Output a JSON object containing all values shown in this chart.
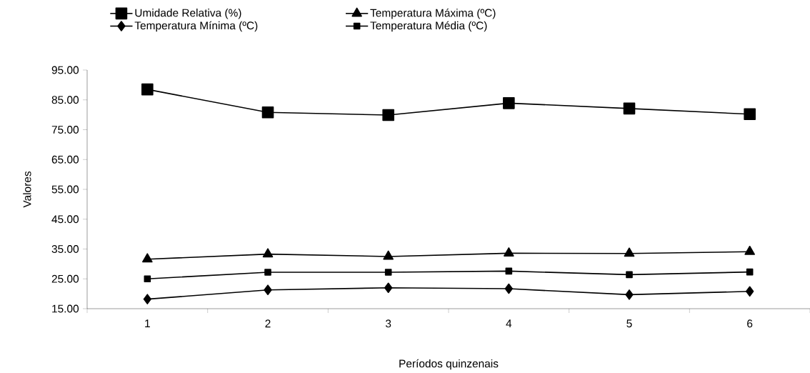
{
  "chart_data": {
    "type": "line",
    "xlabel": "Períodos quinzenais",
    "ylabel": "Valores",
    "categories": [
      "1",
      "2",
      "3",
      "4",
      "5",
      "6"
    ],
    "ylim": [
      15,
      95
    ],
    "yticks": [
      {
        "value": 15,
        "label": "15.00"
      },
      {
        "value": 25,
        "label": "25.00"
      },
      {
        "value": 35,
        "label": "35.00"
      },
      {
        "value": 45,
        "label": "45.00"
      },
      {
        "value": 55,
        "label": "55.00"
      },
      {
        "value": 65,
        "label": "65.00"
      },
      {
        "value": 75,
        "label": "75.00"
      },
      {
        "value": 85,
        "label": "85.00"
      },
      {
        "value": 95,
        "label": "95.00"
      }
    ],
    "legend": "top",
    "grid": false,
    "line_style": "solid",
    "series": [
      {
        "name": "Umidade Relativa (%)",
        "color": "#000000",
        "marker": "square",
        "values": [
          88.5,
          80.8,
          79.9,
          83.9,
          82.1,
          80.2
        ]
      },
      {
        "name": "Temperatura Máxima (ºC)",
        "color": "#000000",
        "marker": "triangle",
        "values": [
          31.6,
          33.3,
          32.5,
          33.6,
          33.5,
          34.1
        ]
      },
      {
        "name": "Temperatura Mínima (ºC)",
        "color": "#000000",
        "marker": "diamond",
        "values": [
          18.2,
          21.3,
          22.0,
          21.7,
          19.7,
          20.8
        ]
      },
      {
        "name": "Temperatura Média (ºC)",
        "color": "#000000",
        "marker": "square",
        "values": [
          25.0,
          27.2,
          27.2,
          27.6,
          26.4,
          27.3
        ]
      }
    ]
  }
}
